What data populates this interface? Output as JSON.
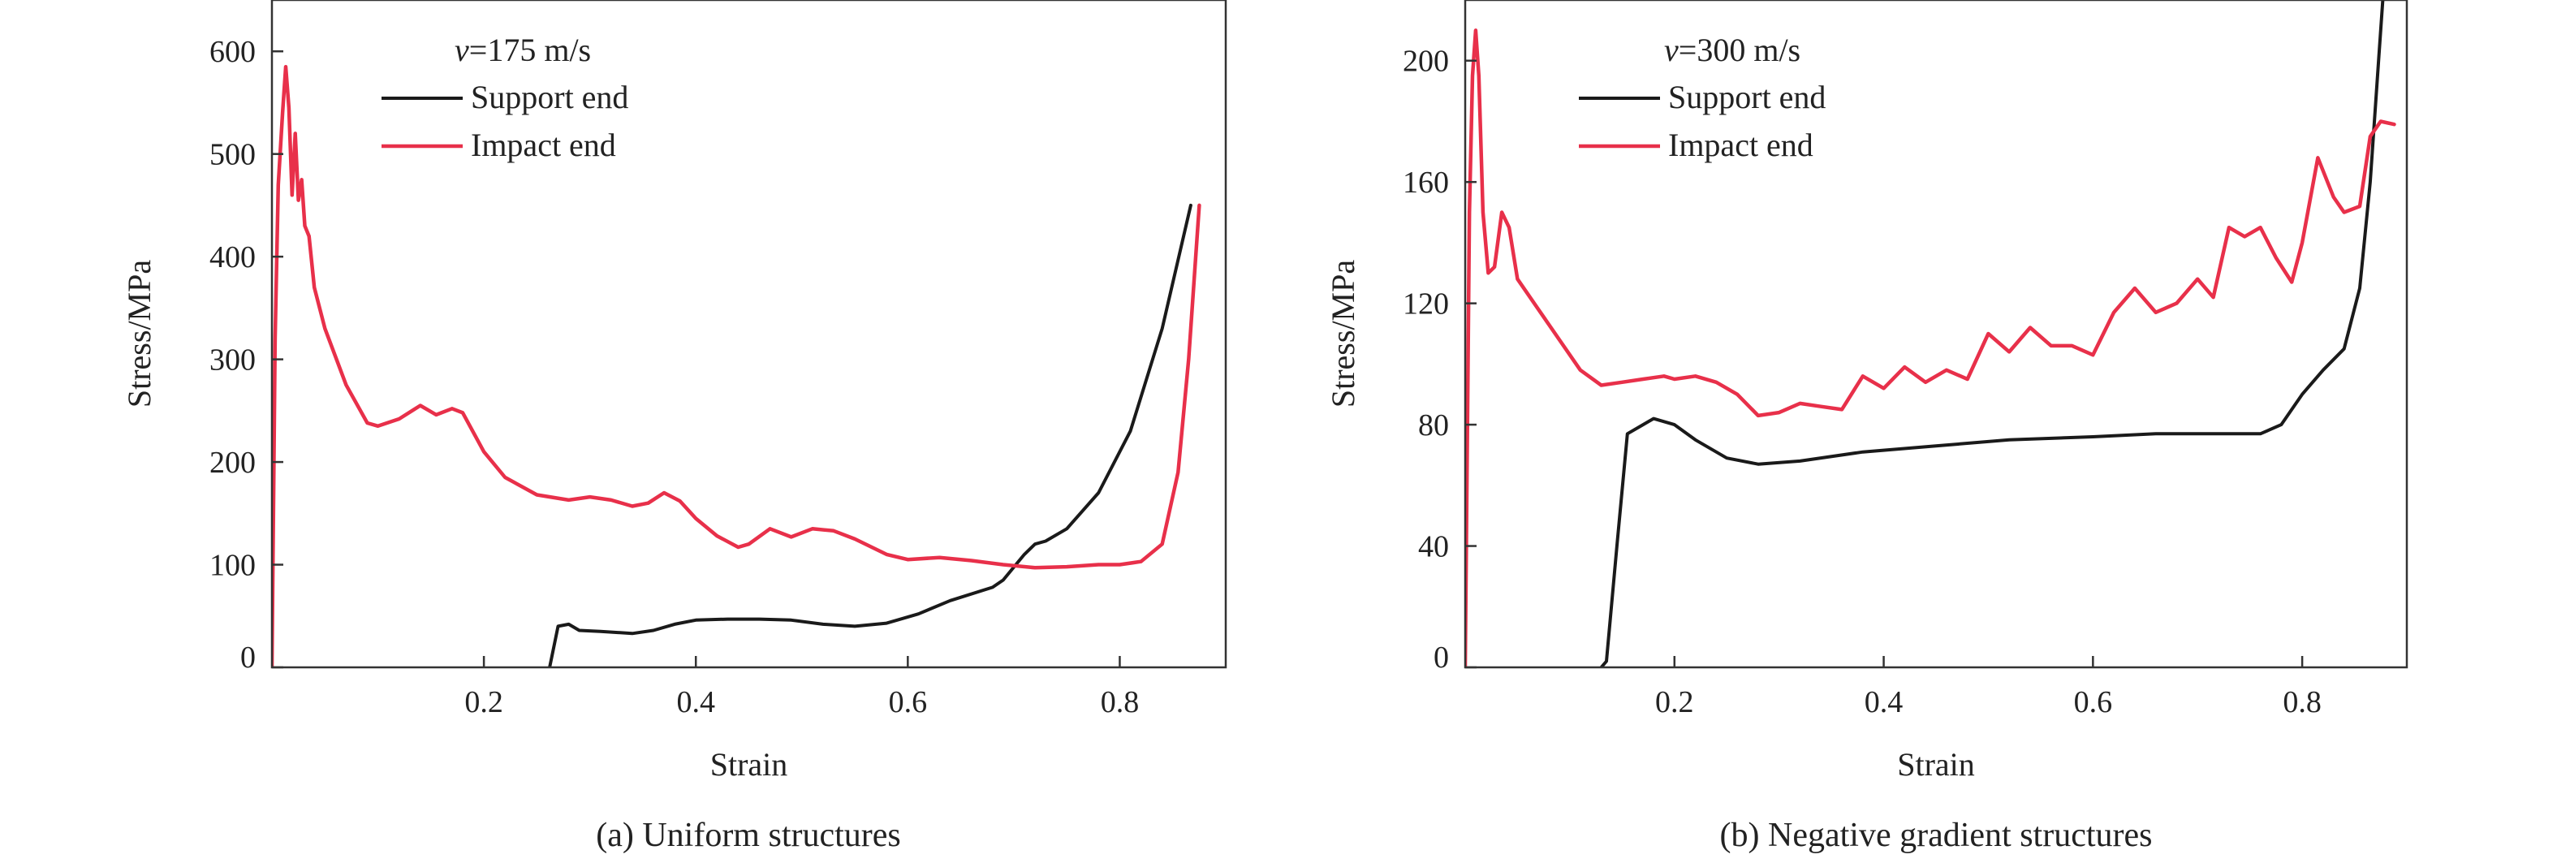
{
  "chart_data": [
    {
      "type": "line",
      "panel": "a",
      "caption": "(a) Uniform structures",
      "xlabel": "Strain",
      "ylabel": "Stress/MPa",
      "xlim": [
        0,
        0.9
      ],
      "ylim": [
        0,
        650
      ],
      "xticks": [
        0.2,
        0.4,
        0.6,
        0.8
      ],
      "xtick_labels": [
        "0.2",
        "0.4",
        "0.6",
        "0.8"
      ],
      "yticks": [
        0,
        100,
        200,
        300,
        400,
        500,
        600
      ],
      "ytick_labels": [
        "0",
        "100",
        "200",
        "300",
        "400",
        "500",
        "600"
      ],
      "annotation": {
        "italic": "v",
        "rest": "=175 m/s"
      },
      "legend_position": "top-left",
      "grid": false,
      "series": [
        {
          "name": "Support end",
          "color": "#1a1a1a",
          "points": [
            [
              0.262,
              0
            ],
            [
              0.27,
              40
            ],
            [
              0.28,
              42
            ],
            [
              0.29,
              36
            ],
            [
              0.31,
              35
            ],
            [
              0.34,
              33
            ],
            [
              0.36,
              36
            ],
            [
              0.38,
              42
            ],
            [
              0.4,
              46
            ],
            [
              0.43,
              47
            ],
            [
              0.46,
              47
            ],
            [
              0.49,
              46
            ],
            [
              0.52,
              42
            ],
            [
              0.55,
              40
            ],
            [
              0.58,
              43
            ],
            [
              0.61,
              52
            ],
            [
              0.64,
              65
            ],
            [
              0.68,
              78
            ],
            [
              0.69,
              85
            ],
            [
              0.71,
              110
            ],
            [
              0.72,
              120
            ],
            [
              0.73,
              123
            ],
            [
              0.75,
              135
            ],
            [
              0.78,
              170
            ],
            [
              0.81,
              230
            ],
            [
              0.84,
              330
            ],
            [
              0.867,
              450
            ]
          ]
        },
        {
          "name": "Impact end",
          "color": "#e8304a",
          "points": [
            [
              0.0,
              0
            ],
            [
              0.003,
              320
            ],
            [
              0.006,
              470
            ],
            [
              0.01,
              540
            ],
            [
              0.013,
              585
            ],
            [
              0.016,
              545
            ],
            [
              0.019,
              460
            ],
            [
              0.022,
              520
            ],
            [
              0.025,
              455
            ],
            [
              0.028,
              475
            ],
            [
              0.031,
              430
            ],
            [
              0.035,
              420
            ],
            [
              0.04,
              370
            ],
            [
              0.05,
              330
            ],
            [
              0.07,
              275
            ],
            [
              0.09,
              238
            ],
            [
              0.1,
              235
            ],
            [
              0.12,
              242
            ],
            [
              0.14,
              255
            ],
            [
              0.155,
              246
            ],
            [
              0.17,
              252
            ],
            [
              0.18,
              248
            ],
            [
              0.2,
              210
            ],
            [
              0.22,
              185
            ],
            [
              0.25,
              168
            ],
            [
              0.28,
              163
            ],
            [
              0.3,
              166
            ],
            [
              0.32,
              163
            ],
            [
              0.34,
              157
            ],
            [
              0.355,
              160
            ],
            [
              0.37,
              170
            ],
            [
              0.385,
              162
            ],
            [
              0.4,
              145
            ],
            [
              0.42,
              128
            ],
            [
              0.44,
              117
            ],
            [
              0.45,
              120
            ],
            [
              0.47,
              135
            ],
            [
              0.49,
              127
            ],
            [
              0.51,
              135
            ],
            [
              0.53,
              133
            ],
            [
              0.55,
              125
            ],
            [
              0.58,
              110
            ],
            [
              0.6,
              105
            ],
            [
              0.63,
              107
            ],
            [
              0.66,
              104
            ],
            [
              0.69,
              100
            ],
            [
              0.72,
              97
            ],
            [
              0.75,
              98
            ],
            [
              0.78,
              100
            ],
            [
              0.8,
              100
            ],
            [
              0.82,
              103
            ],
            [
              0.84,
              120
            ],
            [
              0.855,
              190
            ],
            [
              0.865,
              300
            ],
            [
              0.875,
              450
            ]
          ]
        }
      ]
    },
    {
      "type": "line",
      "panel": "b",
      "caption": "(b) Negative gradient structures",
      "xlabel": "Strain",
      "ylabel": "Stress/MPa",
      "xlim": [
        0,
        0.9
      ],
      "ylim": [
        0,
        220
      ],
      "xticks": [
        0.2,
        0.4,
        0.6,
        0.8
      ],
      "xtick_labels": [
        "0.2",
        "0.4",
        "0.6",
        "0.8"
      ],
      "yticks": [
        0,
        40,
        80,
        120,
        160,
        200
      ],
      "ytick_labels": [
        "0",
        "40",
        "80",
        "120",
        "160",
        "200"
      ],
      "annotation": {
        "italic": "v",
        "rest": "=300 m/s"
      },
      "legend_position": "top-left",
      "grid": false,
      "series": [
        {
          "name": "Support end",
          "color": "#1a1a1a",
          "points": [
            [
              0.13,
              0
            ],
            [
              0.135,
              2
            ],
            [
              0.145,
              40
            ],
            [
              0.155,
              77
            ],
            [
              0.17,
              80
            ],
            [
              0.18,
              82
            ],
            [
              0.2,
              80
            ],
            [
              0.22,
              75
            ],
            [
              0.25,
              69
            ],
            [
              0.28,
              67
            ],
            [
              0.32,
              68
            ],
            [
              0.38,
              71
            ],
            [
              0.45,
              73
            ],
            [
              0.52,
              75
            ],
            [
              0.6,
              76
            ],
            [
              0.66,
              77
            ],
            [
              0.7,
              77
            ],
            [
              0.76,
              77
            ],
            [
              0.78,
              80
            ],
            [
              0.8,
              90
            ],
            [
              0.82,
              98
            ],
            [
              0.84,
              105
            ],
            [
              0.855,
              125
            ],
            [
              0.865,
              160
            ],
            [
              0.873,
              200
            ],
            [
              0.877,
              220
            ]
          ]
        },
        {
          "name": "Impact end",
          "color": "#e8304a",
          "points": [
            [
              0.0,
              0
            ],
            [
              0.004,
              150
            ],
            [
              0.007,
              195
            ],
            [
              0.01,
              210
            ],
            [
              0.013,
              195
            ],
            [
              0.017,
              150
            ],
            [
              0.022,
              130
            ],
            [
              0.028,
              132
            ],
            [
              0.035,
              150
            ],
            [
              0.042,
              145
            ],
            [
              0.05,
              128
            ],
            [
              0.07,
              118
            ],
            [
              0.09,
              108
            ],
            [
              0.11,
              98
            ],
            [
              0.13,
              93
            ],
            [
              0.15,
              94
            ],
            [
              0.17,
              95
            ],
            [
              0.19,
              96
            ],
            [
              0.2,
              95
            ],
            [
              0.22,
              96
            ],
            [
              0.24,
              94
            ],
            [
              0.26,
              90
            ],
            [
              0.28,
              83
            ],
            [
              0.3,
              84
            ],
            [
              0.32,
              87
            ],
            [
              0.34,
              86
            ],
            [
              0.36,
              85
            ],
            [
              0.38,
              96
            ],
            [
              0.4,
              92
            ],
            [
              0.42,
              99
            ],
            [
              0.44,
              94
            ],
            [
              0.46,
              98
            ],
            [
              0.48,
              95
            ],
            [
              0.5,
              110
            ],
            [
              0.52,
              104
            ],
            [
              0.54,
              112
            ],
            [
              0.56,
              106
            ],
            [
              0.58,
              106
            ],
            [
              0.6,
              103
            ],
            [
              0.62,
              117
            ],
            [
              0.64,
              125
            ],
            [
              0.66,
              117
            ],
            [
              0.68,
              120
            ],
            [
              0.7,
              128
            ],
            [
              0.715,
              122
            ],
            [
              0.73,
              145
            ],
            [
              0.745,
              142
            ],
            [
              0.76,
              145
            ],
            [
              0.775,
              135
            ],
            [
              0.79,
              127
            ],
            [
              0.8,
              140
            ],
            [
              0.815,
              168
            ],
            [
              0.83,
              155
            ],
            [
              0.84,
              150
            ],
            [
              0.855,
              152
            ],
            [
              0.865,
              175
            ],
            [
              0.875,
              180
            ],
            [
              0.888,
              179
            ]
          ]
        }
      ]
    }
  ]
}
